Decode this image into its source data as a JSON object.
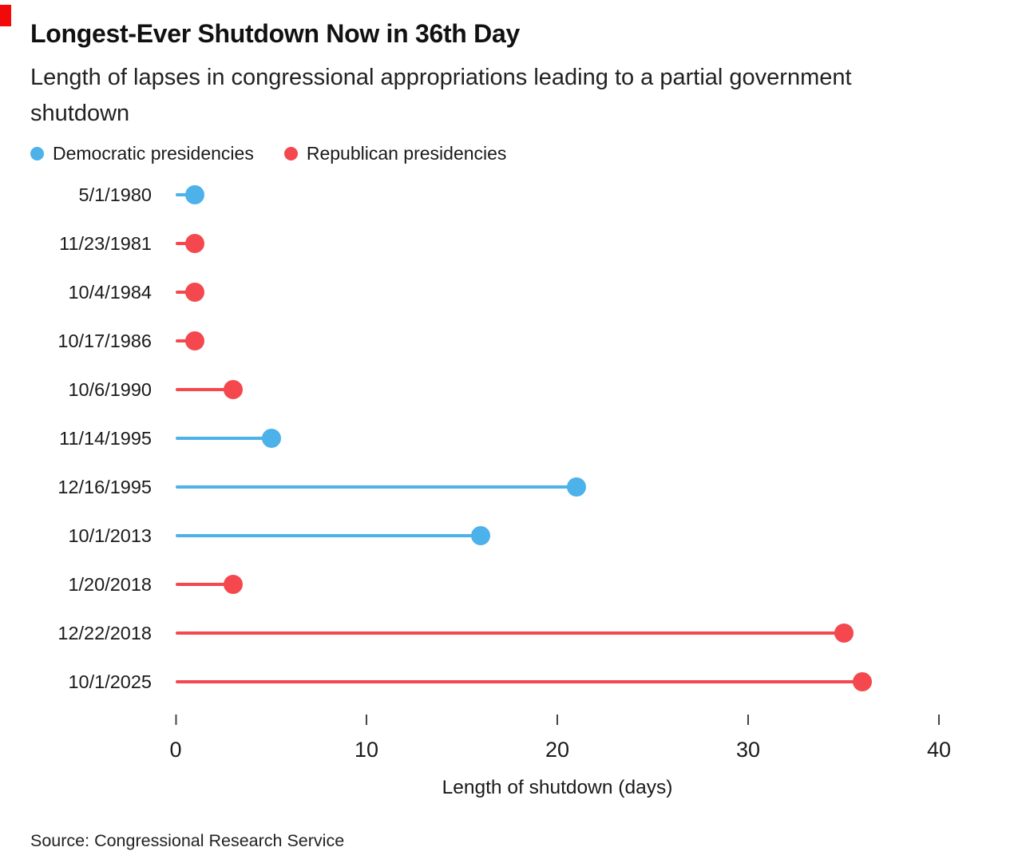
{
  "brand": {
    "corner_accent_color": "#f20a0a"
  },
  "header": {
    "title": "Longest-Ever Shutdown Now in 36th Day",
    "subtitle": "Length of lapses in congressional appropriations leading to a partial government shutdown"
  },
  "legend": [
    {
      "label": "Democratic presidencies",
      "party": "D",
      "color": "#4db1ea"
    },
    {
      "label": "Republican presidencies",
      "party": "R",
      "color": "#f4484e"
    }
  ],
  "footer": {
    "source": "Source: Congressional Research Service"
  },
  "chart_data": {
    "type": "bar",
    "variant": "horizontal lollipop",
    "title": "Longest-Ever Shutdown Now in 36th Day",
    "subtitle": "Length of lapses in congressional appropriations leading to a partial government shutdown",
    "xlabel": "Length of shutdown (days)",
    "xlim": [
      0,
      40
    ],
    "xticks": [
      0,
      10,
      20,
      30,
      40
    ],
    "grid": false,
    "legend_position": "top",
    "categories": [
      "5/1/1980",
      "11/23/1981",
      "10/4/1984",
      "10/17/1986",
      "10/6/1990",
      "11/14/1995",
      "12/16/1995",
      "10/1/2013",
      "1/20/2018",
      "12/22/2018",
      "10/1/2025"
    ],
    "values": [
      1,
      1,
      1,
      1,
      3,
      5,
      21,
      16,
      3,
      35,
      36
    ],
    "parties": [
      "D",
      "R",
      "R",
      "R",
      "R",
      "D",
      "D",
      "D",
      "R",
      "R",
      "R"
    ],
    "colors": {
      "D": "#4db1ea",
      "R": "#f4484e"
    },
    "source": "Source: Congressional Research Service"
  }
}
